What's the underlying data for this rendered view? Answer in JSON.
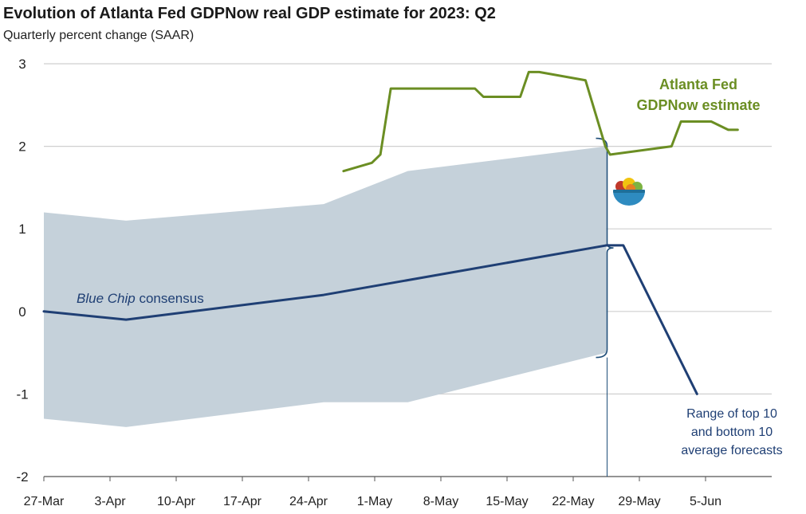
{
  "chart_data": {
    "type": "line",
    "title": "Evolution of Atlanta Fed GDPNow real GDP estimate for 2023: Q2",
    "subtitle": "Quarterly percent change (SAAR)",
    "xlabel": "",
    "ylabel": "",
    "ylim": [
      -2,
      3
    ],
    "yticks": [
      {
        "value": 3,
        "label": "3"
      },
      {
        "value": 2,
        "label": "2"
      },
      {
        "value": 1,
        "label": "1"
      },
      {
        "value": 0,
        "label": "0"
      },
      {
        "value": -1,
        "label": "-1"
      },
      {
        "value": -2,
        "label": "-2"
      }
    ],
    "x_range_days": [
      0,
      77
    ],
    "xticks": [
      {
        "day": 0,
        "label": "27-Mar"
      },
      {
        "day": 7,
        "label": "3-Apr"
      },
      {
        "day": 14,
        "label": "10-Apr"
      },
      {
        "day": 21,
        "label": "17-Apr"
      },
      {
        "day": 28,
        "label": "24-Apr"
      },
      {
        "day": 35,
        "label": "1-May"
      },
      {
        "day": 42,
        "label": "8-May"
      },
      {
        "day": 49,
        "label": "15-May"
      },
      {
        "day": 56,
        "label": "22-May"
      },
      {
        "day": 63,
        "label": "29-May"
      },
      {
        "day": 70,
        "label": "5-Jun"
      }
    ],
    "grid": true,
    "series": [
      {
        "name": "Atlanta Fed GDPNow estimate",
        "color": "#6b8e23",
        "points": [
          [
            31.7,
            1.7
          ],
          [
            34.7,
            1.8
          ],
          [
            35.6,
            1.9
          ],
          [
            36.7,
            2.7
          ],
          [
            45.6,
            2.7
          ],
          [
            46.5,
            2.6
          ],
          [
            50.4,
            2.6
          ],
          [
            51.3,
            2.9
          ],
          [
            52.4,
            2.9
          ],
          [
            57.3,
            2.8
          ],
          [
            59.4,
            2.0
          ],
          [
            59.9,
            1.9
          ],
          [
            66.4,
            2.0
          ],
          [
            67.4,
            2.3
          ],
          [
            70.6,
            2.3
          ],
          [
            72.4,
            2.2
          ],
          [
            73.4,
            2.2
          ]
        ]
      },
      {
        "name": "Blue Chip consensus",
        "color": "#1f3f74",
        "points": [
          [
            0,
            0.0
          ],
          [
            8.7,
            -0.1
          ],
          [
            29.6,
            0.2
          ],
          [
            59.5,
            0.8
          ]
        ]
      },
      {
        "name": "Blue Chip consensus (extension)",
        "color": "#1f3f74",
        "points": [
          [
            59.5,
            0.8
          ],
          [
            61.3,
            0.8
          ],
          [
            69.1,
            -1.0
          ]
        ]
      }
    ],
    "band": {
      "name": "Range of top 10 and bottom 10 average forecasts",
      "color": "#c5d1da",
      "upper": [
        [
          0,
          1.2
        ],
        [
          8.7,
          1.1
        ],
        [
          29.6,
          1.3
        ],
        [
          38.5,
          1.7
        ],
        [
          59.5,
          2.0
        ]
      ],
      "lower": [
        [
          0,
          -1.3
        ],
        [
          8.7,
          -1.4
        ],
        [
          29.6,
          -1.1
        ],
        [
          38.5,
          -1.1
        ],
        [
          59.5,
          -0.5
        ]
      ]
    },
    "annotations": {
      "gdpnow_line1": "Atlanta Fed",
      "gdpnow_line2": "GDPNow estimate",
      "bluechip_italic": "Blue Chip",
      "bluechip_rest": " consensus",
      "range_line1": "Range of top 10",
      "range_line2": "and bottom 10",
      "range_line3": "average forecasts"
    }
  }
}
